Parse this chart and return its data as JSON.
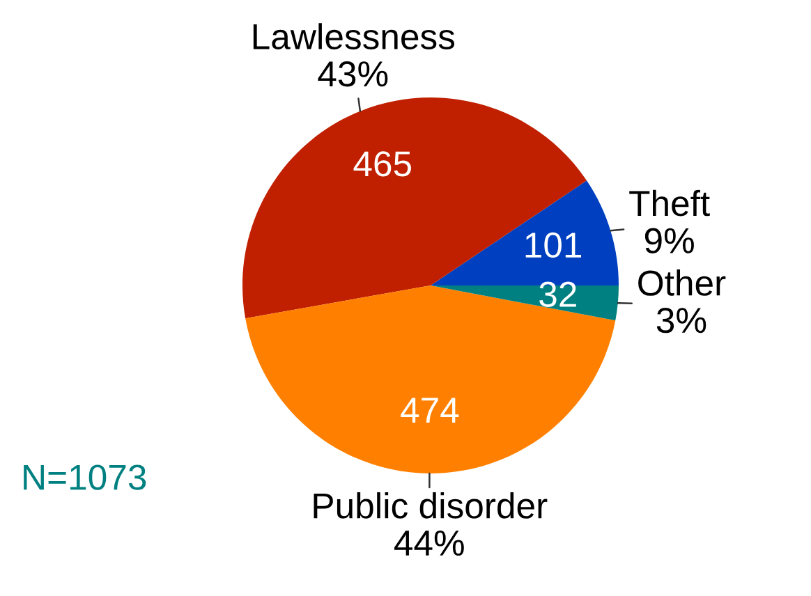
{
  "chart_data": {
    "type": "pie",
    "categories": [
      "Theft\n9%",
      "Lawlessness\n43%",
      "Public disorder\n44%",
      "Other\n3%"
    ],
    "values": [
      101,
      465,
      474,
      32
    ],
    "colors": [
      "#0040c0",
      "#c02000",
      "#ff8000",
      "#008080"
    ],
    "data_labels": true,
    "annotations": [
      "N=1073"
    ]
  }
}
